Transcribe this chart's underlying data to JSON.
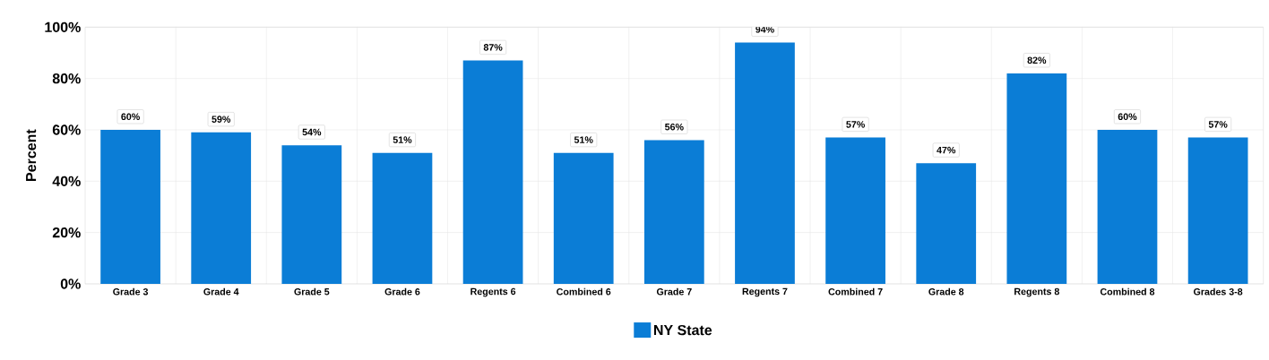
{
  "chart_data": {
    "type": "bar",
    "ylabel": "Percent",
    "categories": [
      "Grade 3",
      "Grade 4",
      "Grade 5",
      "Grade 6",
      "Regents 6",
      "Combined 6",
      "Grade 7",
      "Regents 7",
      "Combined 7",
      "Grade 8",
      "Regents 8",
      "Combined 8",
      "Grades 3-8"
    ],
    "series": [
      {
        "name": "NY State",
        "color": "#0b7dd6",
        "values": [
          60,
          59,
          54,
          51,
          87,
          51,
          56,
          94,
          57,
          47,
          82,
          60,
          57
        ],
        "value_labels": [
          "60%",
          "59%",
          "54%",
          "51%",
          "87%",
          "51%",
          "56%",
          "94%",
          "57%",
          "47%",
          "82%",
          "60%",
          "57%"
        ]
      }
    ],
    "ylim": [
      0,
      100
    ],
    "yticks": [
      {
        "value": 0,
        "label": "0%"
      },
      {
        "value": 20,
        "label": "20%"
      },
      {
        "value": 40,
        "label": "40%"
      },
      {
        "value": 60,
        "label": "60%"
      },
      {
        "value": 80,
        "label": "80%"
      },
      {
        "value": 100,
        "label": "100%"
      }
    ],
    "grid": true,
    "legend": "bottom"
  }
}
